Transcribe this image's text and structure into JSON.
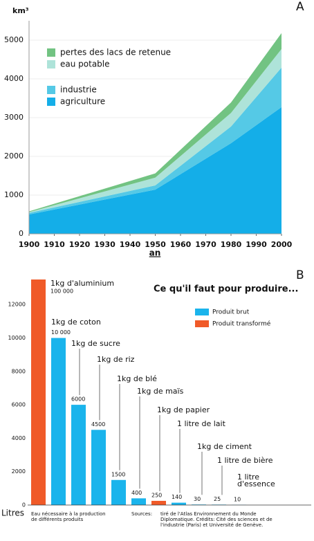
{
  "chart_data": [
    {
      "type": "area",
      "stacked": true,
      "label": "A",
      "ylabel": "km³",
      "xlabel": "an",
      "x": [
        1900,
        1950,
        1980,
        2000
      ],
      "xlim": [
        1900,
        2000
      ],
      "xticks": [
        1900,
        1910,
        1920,
        1930,
        1940,
        1950,
        1960,
        1970,
        1980,
        1990,
        2000
      ],
      "ylim": [
        0,
        5500
      ],
      "yticks": [
        0,
        1000,
        2000,
        3000,
        4000,
        5000
      ],
      "grid": true,
      "series": [
        {
          "name": "agriculture",
          "color": "#14aee8",
          "values": [
            500,
            1140,
            2340,
            3270
          ]
        },
        {
          "name": "industrie",
          "color": "#55c9e6",
          "values": [
            40,
            110,
            430,
            1020
          ]
        },
        {
          "name": "eau potable",
          "color": "#aee3d9",
          "values": [
            20,
            200,
            350,
            480
          ]
        },
        {
          "name": "pertes des lacs de retenue",
          "color": "#72c382",
          "values": [
            20,
            110,
            270,
            410
          ]
        }
      ]
    },
    {
      "type": "bar",
      "label": "B",
      "title": "Ce qu'il faut pour produire...",
      "ylabel": "Litres",
      "categories": [
        "1kg d'aluminium",
        "1kg de coton",
        "1kg de sucre",
        "1kg de riz",
        "1kg de blé",
        "1kg de maïs",
        "1kg de papier",
        "1 litre de lait",
        "1kg de ciment",
        "1 litre de bière",
        [
          "1 litre",
          "d'essence"
        ]
      ],
      "values": [
        100000,
        10000,
        6000,
        4500,
        1500,
        400,
        250,
        140,
        30,
        25,
        10
      ],
      "value_labels": [
        "100 000",
        "10 000",
        "6000",
        "4500",
        "1500",
        "400",
        "250",
        "140",
        "30",
        "25",
        "10"
      ],
      "bar_colors": [
        "#f05a28",
        "#1ab4ec",
        "#1ab4ec",
        "#1ab4ec",
        "#1ab4ec",
        "#1ab4ec",
        "#f05a28",
        "#1ab4ec",
        "#1ab4ec",
        "#1ab4ec",
        "#1ab4ec"
      ],
      "ylim": [
        0,
        13500
      ],
      "yticks": [
        0,
        2000,
        4000,
        6000,
        8000,
        10000,
        12000
      ],
      "legend": [
        {
          "name": "Produit brut",
          "color": "#1ab4ec"
        },
        {
          "name": "Produit transformé",
          "color": "#f05a28"
        }
      ],
      "note": [
        "Eau nécessaire à la production",
        "de différents produits"
      ],
      "sources_label": "Sources:",
      "sources": [
        "tiré de l'Atlas Environnement du Monde",
        "Diplomatique. Crédits: Cité des sciences et de",
        "l'industrie (Paris) et Université de Genève."
      ]
    }
  ]
}
